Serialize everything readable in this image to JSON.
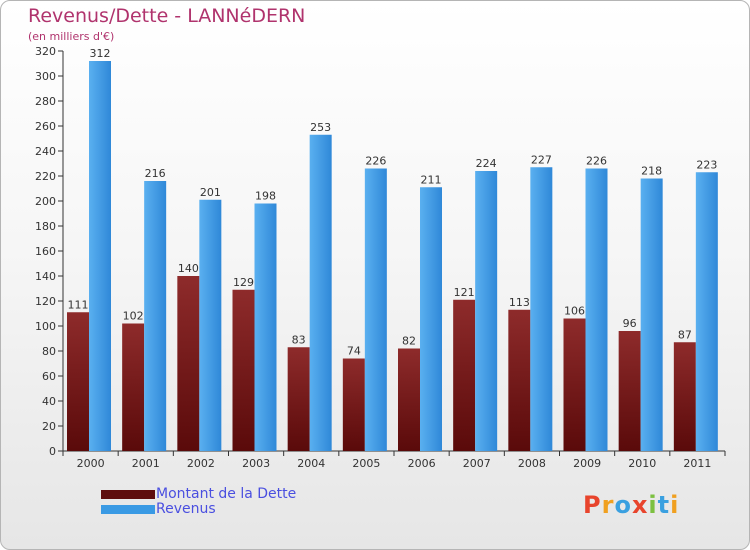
{
  "header": {
    "title": "Revenus/Dette - LANNéDERN",
    "subtitle": "(en milliers d'€)"
  },
  "chart_data": {
    "type": "bar",
    "categories": [
      "2000",
      "2001",
      "2002",
      "2003",
      "2004",
      "2005",
      "2006",
      "2007",
      "2008",
      "2009",
      "2010",
      "2011"
    ],
    "series": [
      {
        "name": "Montant de la Dette",
        "values": [
          111,
          102,
          140,
          129,
          83,
          74,
          82,
          121,
          113,
          106,
          96,
          87
        ],
        "color": "#7a1f1f"
      },
      {
        "name": "Revenus",
        "values": [
          312,
          216,
          201,
          198,
          253,
          226,
          211,
          224,
          227,
          226,
          218,
          223
        ],
        "color": "#3a9ae4"
      }
    ],
    "ylim": [
      0,
      320
    ],
    "yticks": [
      0,
      20,
      40,
      60,
      80,
      100,
      120,
      140,
      160,
      180,
      200,
      220,
      240,
      260,
      280,
      300,
      320
    ],
    "grid": false,
    "legend_position": "bottom-left"
  },
  "legend": {
    "items": [
      {
        "label": "Montant de la Dette",
        "color": "#5e0d0d"
      },
      {
        "label": "Revenus",
        "color": "#3a9ae4"
      }
    ]
  },
  "logo": {
    "letters": [
      {
        "ch": "P",
        "color": "#e8442c"
      },
      {
        "ch": "r",
        "color": "#f0a020"
      },
      {
        "ch": "o",
        "color": "#3aa0e0"
      },
      {
        "ch": "x",
        "color": "#e8442c"
      },
      {
        "ch": "i",
        "color": "#7cc040"
      },
      {
        "ch": "t",
        "color": "#3aa0e0"
      },
      {
        "ch": "i",
        "color": "#f0a020"
      }
    ]
  }
}
